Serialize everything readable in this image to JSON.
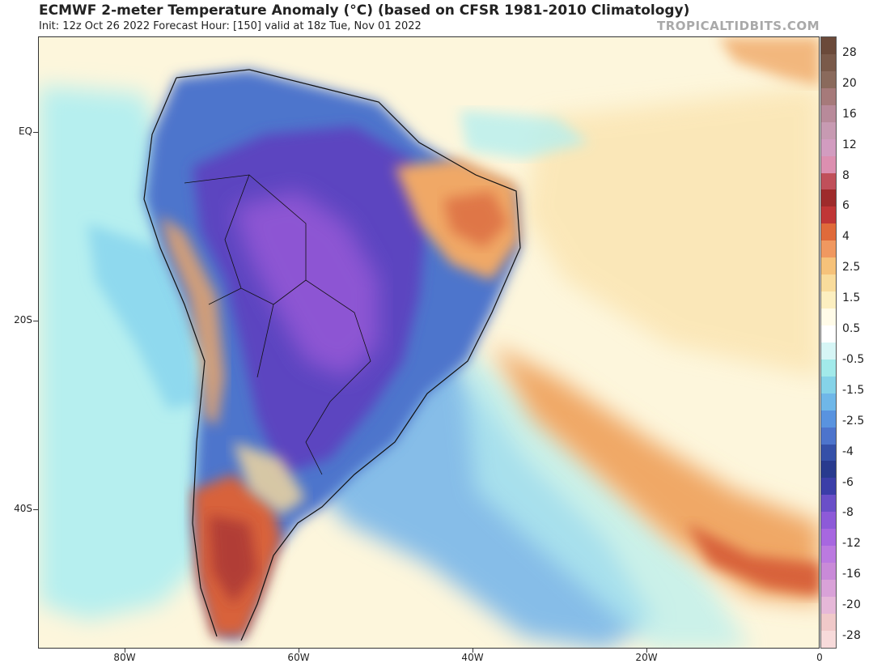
{
  "header": {
    "title": "ECMWF 2-meter Temperature Anomaly (°C) (based on CFSR 1981-2010 Climatology)",
    "subtitle": "Init: 12z Oct 26 2022   Forecast Hour: [150]   valid at 18z Tue, Nov 01 2022",
    "brand": "TROPICALTIDBITS.COM"
  },
  "axes": {
    "lat_labels": [
      "EQ",
      "20S",
      "40S"
    ],
    "lon_labels": [
      "80W",
      "60W",
      "40W",
      "20W",
      "0"
    ]
  },
  "colorbar": {
    "labels": [
      "28",
      "20",
      "16",
      "12",
      "8",
      "6",
      "4",
      "2.5",
      "1.5",
      "0.5",
      "-0.5",
      "-1.5",
      "-2.5",
      "-4",
      "-6",
      "-8",
      "-12",
      "-16",
      "-20",
      "-28"
    ],
    "colors": [
      "#6b4a3a",
      "#7a5a4a",
      "#8a6a5c",
      "#a67a7a",
      "#b88a9a",
      "#c79ab2",
      "#d29cc0",
      "#dc8fb0",
      "#c0505a",
      "#9e2b2b",
      "#c03636",
      "#e06a3a",
      "#f09860",
      "#f6c27a",
      "#f9dc9c",
      "#fcefc0",
      "#fffbe8",
      "#ffffff",
      "#d6f6f6",
      "#a2eaea",
      "#85d3e8",
      "#6fb7e8",
      "#5993df",
      "#4d74cc",
      "#3550a8",
      "#283a8e",
      "#3b3ea8",
      "#6a4fc8",
      "#8d5ad8",
      "#a767e0",
      "#bb7ae0",
      "#c98ad8",
      "#d9a2d8",
      "#e6b8d8",
      "#f0c9c9",
      "#f7dada"
    ]
  },
  "map": {
    "colors": {
      "ocean_neutral": "#fdf6dc",
      "warm_light": "#f9dc9c",
      "warm_mid": "#f0a866",
      "warm_strong": "#d8623a",
      "hot": "#a83434",
      "cool_light": "#b6efef",
      "cool_mid": "#86bde8",
      "cool_strong": "#4d74cc",
      "cold": "#5b45c0",
      "very_cold": "#9a5ad8",
      "border": "#111111"
    }
  }
}
